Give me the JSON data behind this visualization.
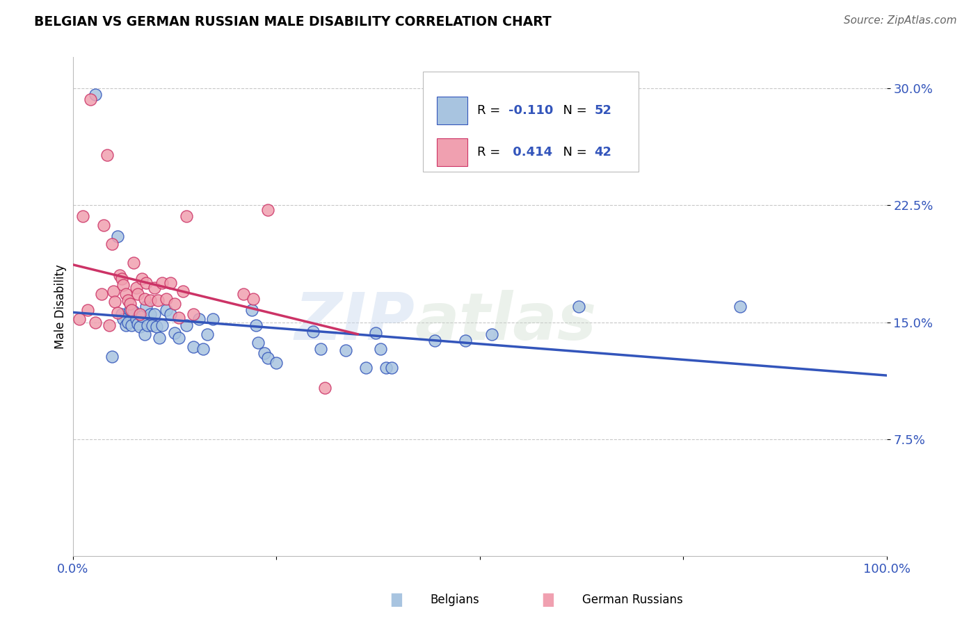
{
  "title": "BELGIAN VS GERMAN RUSSIAN MALE DISABILITY CORRELATION CHART",
  "source": "Source: ZipAtlas.com",
  "ylabel": "Male Disability",
  "xlim": [
    0.0,
    1.0
  ],
  "ylim": [
    0.0,
    0.32
  ],
  "ytick_vals": [
    0.075,
    0.15,
    0.225,
    0.3
  ],
  "ytick_labels": [
    "7.5%",
    "15.0%",
    "22.5%",
    "30.0%"
  ],
  "xtick_vals": [
    0.0,
    0.25,
    0.5,
    0.75,
    1.0
  ],
  "xtick_labels": [
    "0.0%",
    "",
    "",
    "",
    "100.0%"
  ],
  "belgians_R": -0.11,
  "belgians_N": 52,
  "german_russians_R": 0.414,
  "german_russians_N": 42,
  "belgians_color": "#a8c4e0",
  "german_russians_color": "#f0a0b0",
  "belgians_line_color": "#3355bb",
  "german_russians_line_color": "#cc3366",
  "background_color": "#ffffff",
  "watermark": "ZIPatlas",
  "belgians_x": [
    0.028,
    0.048,
    0.055,
    0.06,
    0.062,
    0.065,
    0.068,
    0.07,
    0.072,
    0.075,
    0.078,
    0.08,
    0.082,
    0.085,
    0.088,
    0.09,
    0.092,
    0.095,
    0.098,
    0.1,
    0.103,
    0.106,
    0.11,
    0.115,
    0.12,
    0.125,
    0.13,
    0.14,
    0.148,
    0.155,
    0.16,
    0.165,
    0.172,
    0.22,
    0.225,
    0.228,
    0.235,
    0.24,
    0.25,
    0.295,
    0.305,
    0.335,
    0.36,
    0.372,
    0.378,
    0.385,
    0.392,
    0.445,
    0.482,
    0.515,
    0.622,
    0.82
  ],
  "belgians_y": [
    0.296,
    0.128,
    0.205,
    0.155,
    0.152,
    0.148,
    0.15,
    0.158,
    0.148,
    0.157,
    0.152,
    0.149,
    0.147,
    0.154,
    0.142,
    0.16,
    0.148,
    0.155,
    0.148,
    0.155,
    0.147,
    0.14,
    0.148,
    0.158,
    0.155,
    0.143,
    0.14,
    0.148,
    0.134,
    0.152,
    0.133,
    0.142,
    0.152,
    0.158,
    0.148,
    0.137,
    0.13,
    0.127,
    0.124,
    0.144,
    0.133,
    0.132,
    0.121,
    0.143,
    0.133,
    0.121,
    0.121,
    0.138,
    0.138,
    0.142,
    0.16,
    0.16
  ],
  "german_russians_x": [
    0.008,
    0.012,
    0.018,
    0.022,
    0.028,
    0.035,
    0.038,
    0.042,
    0.045,
    0.048,
    0.05,
    0.052,
    0.055,
    0.058,
    0.06,
    0.062,
    0.065,
    0.068,
    0.07,
    0.072,
    0.075,
    0.078,
    0.08,
    0.082,
    0.085,
    0.088,
    0.09,
    0.095,
    0.1,
    0.105,
    0.11,
    0.115,
    0.12,
    0.125,
    0.13,
    0.135,
    0.14,
    0.148,
    0.21,
    0.222,
    0.24,
    0.31
  ],
  "german_russians_y": [
    0.152,
    0.218,
    0.158,
    0.293,
    0.15,
    0.168,
    0.212,
    0.257,
    0.148,
    0.2,
    0.17,
    0.163,
    0.156,
    0.18,
    0.178,
    0.174,
    0.168,
    0.164,
    0.162,
    0.158,
    0.188,
    0.172,
    0.168,
    0.155,
    0.178,
    0.165,
    0.175,
    0.164,
    0.172,
    0.164,
    0.175,
    0.165,
    0.175,
    0.162,
    0.153,
    0.17,
    0.218,
    0.155,
    0.168,
    0.165,
    0.222,
    0.108
  ]
}
